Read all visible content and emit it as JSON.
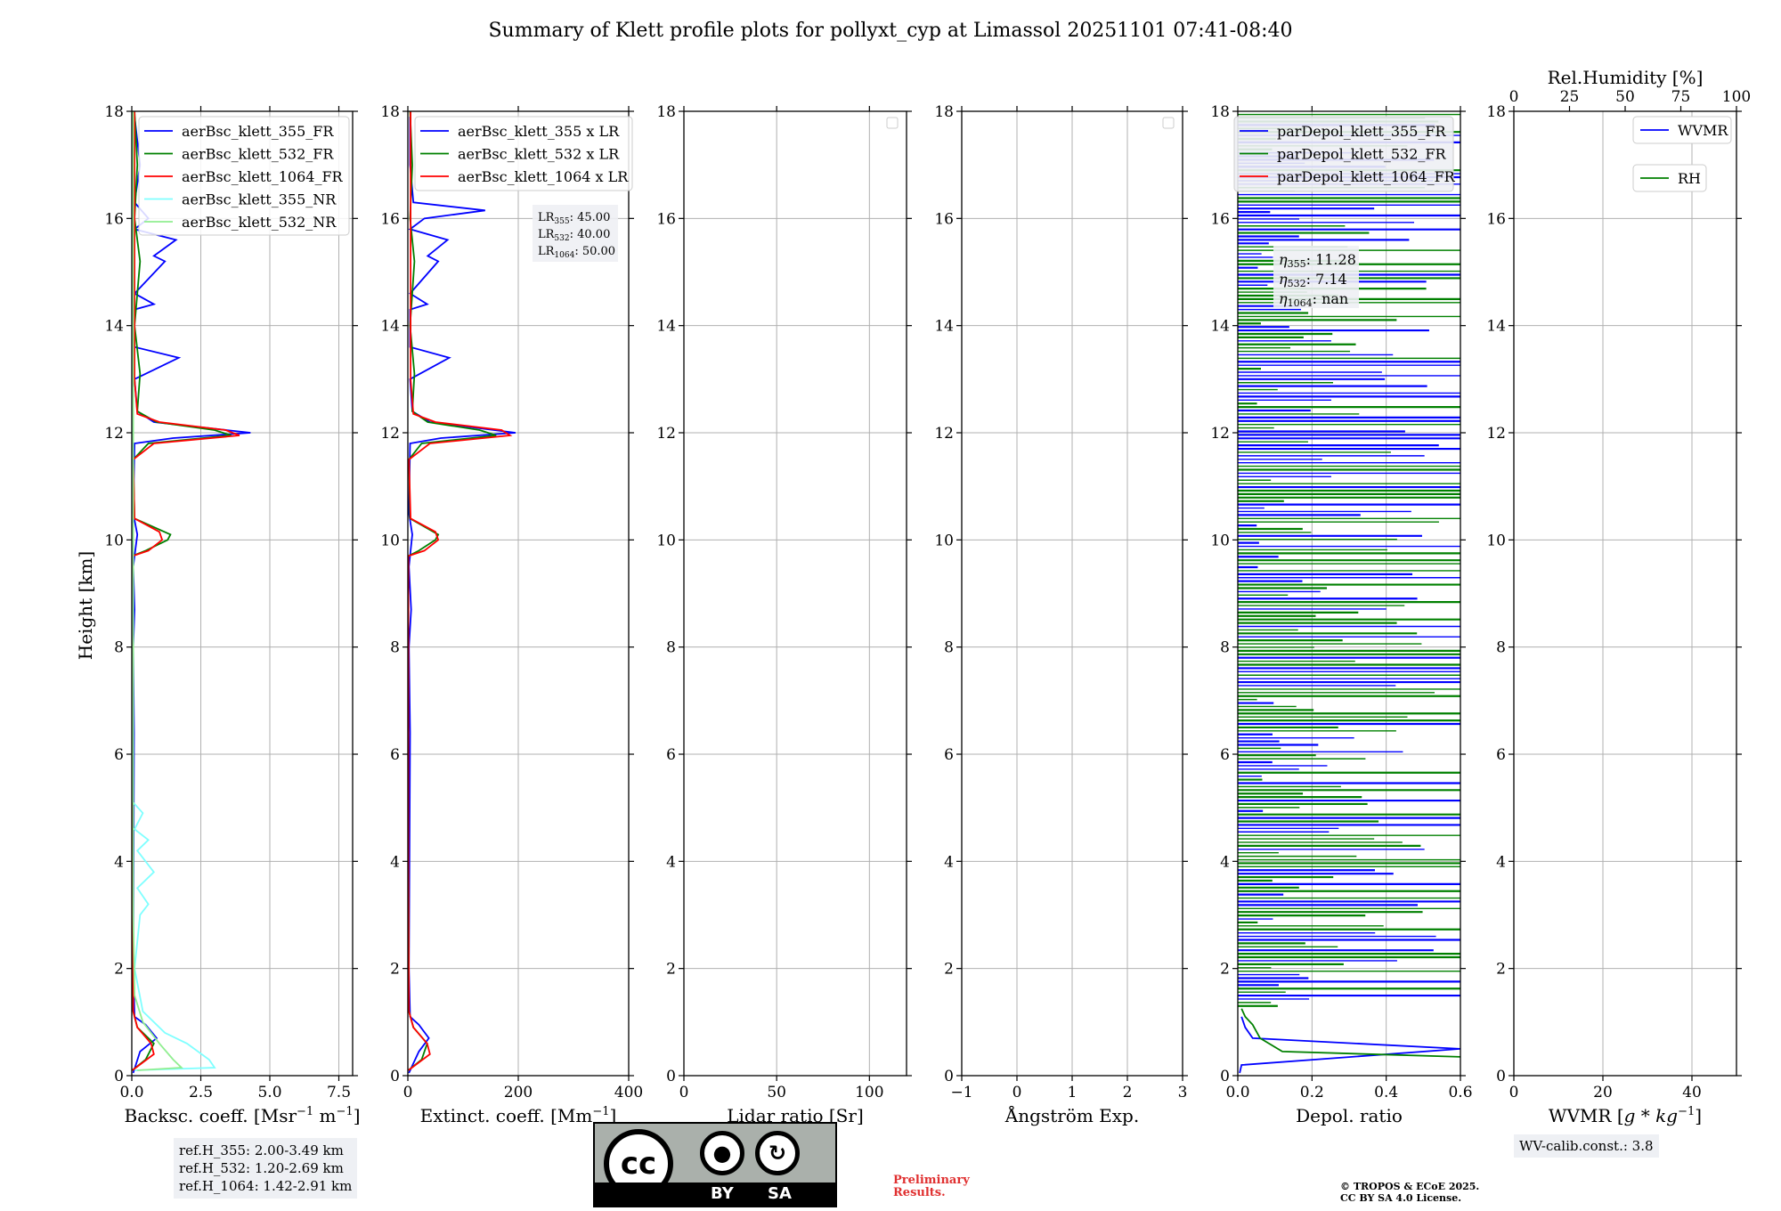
{
  "title": "Summary of Klett profile plots for pollyxt_cyp at Limassol 20251101 07:41-08:40",
  "ylabel": "Height [km]",
  "ref_heights": [
    "ref.H_355: 2.00-3.49 km",
    "ref.H_532: 1.20-2.69 km",
    "ref.H_1064: 1.42-2.91 km"
  ],
  "wv_calib": "WV-calib.const.: 3.8",
  "preliminary": [
    "Preliminary",
    "Results."
  ],
  "copyright": [
    "© TROPOS & ECoE 2025.",
    "CC BY SA 4.0 License."
  ],
  "license_badge": {
    "cc": "cc",
    "by": "BY",
    "sa": "SA"
  },
  "colors": {
    "blue": "#0000ff",
    "green": "#008000",
    "red": "#ff0000",
    "cyan": "#7fffff",
    "lightgreen": "#90ee90"
  },
  "chart_data": [
    {
      "type": "line",
      "xlabel": "Backsc. coeff. [Msr$^{-1}$ m$^{-1}$]",
      "xlabel_text": "Backsc. coeff. [Msr",
      "xlabel_sup1": "−1",
      "xlabel_mid": " m",
      "xlabel_sup2": "−1",
      "xlabel_end": "]",
      "xlim": [
        0,
        8
      ],
      "ylim": [
        0,
        18
      ],
      "xticks": [
        "0.0",
        "2.5",
        "5.0",
        "7.5"
      ],
      "xtick_values": [
        0,
        2.5,
        5,
        7.5
      ],
      "yticks": [
        "0",
        "2",
        "4",
        "6",
        "8",
        "10",
        "12",
        "14",
        "16",
        "18"
      ],
      "legend": [
        "aerBsc_klett_355_FR",
        "aerBsc_klett_532_FR",
        "aerBsc_klett_1064_FR",
        "aerBsc_klett_355_NR",
        "aerBsc_klett_532_NR"
      ],
      "series": [
        {
          "name": "aerBsc_klett_355_FR",
          "color": "blue",
          "points": [
            [
              0.05,
              0.05
            ],
            [
              0.3,
              0.45
            ],
            [
              0.9,
              0.7
            ],
            [
              0.5,
              0.95
            ],
            [
              0.1,
              1.1
            ],
            [
              0.05,
              2
            ],
            [
              0.08,
              6.4
            ],
            [
              0.05,
              8
            ],
            [
              0.1,
              8.7
            ],
            [
              0.05,
              9.5
            ],
            [
              0.2,
              10.1
            ],
            [
              0.05,
              10.5
            ],
            [
              0.1,
              11.8
            ],
            [
              1.5,
              11.9
            ],
            [
              4.3,
              12.0
            ],
            [
              0.8,
              12.2
            ],
            [
              0.2,
              12.4
            ],
            [
              0.1,
              13
            ],
            [
              1.7,
              13.4
            ],
            [
              0.1,
              13.6
            ],
            [
              0.1,
              14.3
            ],
            [
              0.8,
              14.4
            ],
            [
              0.1,
              14.6
            ],
            [
              1.2,
              15.2
            ],
            [
              0.8,
              15.3
            ],
            [
              1.6,
              15.6
            ],
            [
              0.1,
              15.8
            ],
            [
              0.6,
              16.0
            ],
            [
              0.1,
              16.3
            ],
            [
              0.3,
              17
            ],
            [
              0.1,
              17.9
            ]
          ]
        },
        {
          "name": "aerBsc_klett_532_FR",
          "color": "green",
          "points": [
            [
              0.02,
              0.1
            ],
            [
              0.5,
              0.3
            ],
            [
              0.8,
              0.6
            ],
            [
              0.2,
              0.9
            ],
            [
              0.05,
              1.2
            ],
            [
              0.02,
              4
            ],
            [
              0.02,
              9.7
            ],
            [
              0.5,
              9.8
            ],
            [
              1.3,
              10.0
            ],
            [
              1.4,
              10.1
            ],
            [
              0.1,
              10.4
            ],
            [
              0.05,
              11.5
            ],
            [
              0.6,
              11.8
            ],
            [
              3.6,
              11.95
            ],
            [
              3.0,
              12.05
            ],
            [
              0.9,
              12.2
            ],
            [
              0.2,
              12.4
            ],
            [
              0.3,
              13.1
            ],
            [
              0.1,
              14
            ],
            [
              0.3,
              15.2
            ],
            [
              0.1,
              16
            ],
            [
              0.2,
              17
            ],
            [
              0.1,
              18
            ]
          ]
        },
        {
          "name": "aerBsc_klett_1064_FR",
          "color": "red",
          "points": [
            [
              0.02,
              0.1
            ],
            [
              0.8,
              0.4
            ],
            [
              0.7,
              0.6
            ],
            [
              0.2,
              0.9
            ],
            [
              0.05,
              1.2
            ],
            [
              0.03,
              4
            ],
            [
              0.03,
              9.7
            ],
            [
              0.6,
              9.8
            ],
            [
              1.1,
              10.0
            ],
            [
              1.0,
              10.15
            ],
            [
              0.1,
              10.4
            ],
            [
              0.05,
              11.5
            ],
            [
              0.8,
              11.8
            ],
            [
              3.9,
              11.95
            ],
            [
              3.4,
              12.05
            ],
            [
              1.0,
              12.2
            ],
            [
              0.2,
              12.35
            ],
            [
              0.1,
              13
            ],
            [
              0.1,
              18
            ]
          ]
        },
        {
          "name": "aerBsc_klett_355_NR",
          "color": "cyan",
          "points": [
            [
              0.1,
              0.1
            ],
            [
              3.0,
              0.15
            ],
            [
              2.8,
              0.3
            ],
            [
              2.0,
              0.6
            ],
            [
              1.2,
              0.8
            ],
            [
              0.4,
              1.2
            ],
            [
              0.1,
              2.0
            ],
            [
              0.3,
              3.0
            ],
            [
              0.6,
              3.2
            ],
            [
              0.2,
              3.5
            ],
            [
              0.8,
              3.8
            ],
            [
              0.2,
              4.2
            ],
            [
              0.6,
              4.4
            ],
            [
              0.1,
              4.6
            ],
            [
              0.4,
              4.9
            ],
            [
              0.05,
              5.1
            ],
            [
              0.05,
              18
            ]
          ]
        },
        {
          "name": "aerBsc_klett_532_NR",
          "color": "lightgreen",
          "points": [
            [
              0.2,
              0.1
            ],
            [
              1.8,
              0.15
            ],
            [
              1.5,
              0.3
            ],
            [
              1.0,
              0.6
            ],
            [
              0.4,
              1.0
            ],
            [
              0.1,
              1.5
            ],
            [
              0.05,
              3
            ],
            [
              0.05,
              18
            ]
          ]
        }
      ]
    },
    {
      "type": "line",
      "xlabel_text": "Extinct. coeff. [Mm",
      "xlabel_sup1": "−1",
      "xlabel_end": "]",
      "xlim": [
        0,
        400
      ],
      "ylim": [
        0,
        18
      ],
      "xticks": [
        "0",
        "200",
        "400"
      ],
      "xtick_values": [
        0,
        200,
        400
      ],
      "yticks": [
        "0",
        "2",
        "4",
        "6",
        "8",
        "10",
        "12",
        "14",
        "16",
        "18"
      ],
      "legend": [
        "aerBsc_klett_355 x LR",
        "aerBsc_klett_532 x LR",
        "aerBsc_klett_1064 x LR"
      ],
      "lr_box": [
        "LR",
        "355",
        ": 45.00",
        "LR",
        "532",
        ": 40.00",
        "LR",
        "1064",
        ": 50.00"
      ],
      "series": [
        {
          "name": "aerBsc_klett_355 x LR",
          "color": "blue",
          "points": [
            [
              2,
              0.05
            ],
            [
              20,
              0.45
            ],
            [
              38,
              0.7
            ],
            [
              20,
              0.95
            ],
            [
              4,
              1.1
            ],
            [
              2,
              2
            ],
            [
              4,
              6.4
            ],
            [
              2,
              8
            ],
            [
              6,
              8.7
            ],
            [
              2,
              9.5
            ],
            [
              8,
              10.1
            ],
            [
              2,
              10.5
            ],
            [
              4,
              11.8
            ],
            [
              60,
              11.9
            ],
            [
              195,
              12.0
            ],
            [
              40,
              12.2
            ],
            [
              8,
              12.4
            ],
            [
              4,
              13
            ],
            [
              75,
              13.4
            ],
            [
              4,
              13.6
            ],
            [
              4,
              14.3
            ],
            [
              35,
              14.4
            ],
            [
              4,
              14.6
            ],
            [
              55,
              15.2
            ],
            [
              36,
              15.3
            ],
            [
              72,
              15.6
            ],
            [
              4,
              15.8
            ],
            [
              30,
              16.0
            ],
            [
              140,
              16.15
            ],
            [
              10,
              16.3
            ],
            [
              4,
              17
            ],
            [
              4,
              17.9
            ]
          ]
        },
        {
          "name": "aerBsc_klett_532 x LR",
          "color": "green",
          "points": [
            [
              1,
              0.1
            ],
            [
              25,
              0.3
            ],
            [
              35,
              0.6
            ],
            [
              10,
              0.9
            ],
            [
              2,
              1.2
            ],
            [
              1,
              4
            ],
            [
              1,
              9.7
            ],
            [
              20,
              9.8
            ],
            [
              50,
              10.0
            ],
            [
              55,
              10.1
            ],
            [
              4,
              10.4
            ],
            [
              2,
              11.5
            ],
            [
              25,
              11.8
            ],
            [
              160,
              11.95
            ],
            [
              130,
              12.05
            ],
            [
              36,
              12.2
            ],
            [
              8,
              12.4
            ],
            [
              12,
              13.1
            ],
            [
              4,
              14
            ],
            [
              12,
              15.2
            ],
            [
              4,
              16
            ],
            [
              8,
              17
            ],
            [
              4,
              18
            ]
          ]
        },
        {
          "name": "aerBsc_klett_1064 x LR",
          "color": "red",
          "points": [
            [
              1,
              0.1
            ],
            [
              40,
              0.4
            ],
            [
              35,
              0.6
            ],
            [
              10,
              0.9
            ],
            [
              2,
              1.2
            ],
            [
              1,
              4
            ],
            [
              1,
              9.7
            ],
            [
              30,
              9.8
            ],
            [
              55,
              10.0
            ],
            [
              50,
              10.15
            ],
            [
              5,
              10.4
            ],
            [
              2,
              11.5
            ],
            [
              40,
              11.8
            ],
            [
              185,
              11.95
            ],
            [
              170,
              12.05
            ],
            [
              50,
              12.2
            ],
            [
              10,
              12.35
            ],
            [
              5,
              13
            ],
            [
              5,
              18
            ]
          ]
        }
      ]
    },
    {
      "type": "line",
      "xlabel_text": "Lidar ratio [Sr]",
      "xlim": [
        0,
        120
      ],
      "ylim": [
        0,
        18
      ],
      "xticks": [
        "0",
        "50",
        "100"
      ],
      "xtick_values": [
        0,
        50,
        100
      ],
      "yticks": [
        "0",
        "2",
        "4",
        "6",
        "8",
        "10",
        "12",
        "14",
        "16",
        "18"
      ],
      "series": []
    },
    {
      "type": "line",
      "xlabel_text": "Ångström Exp.",
      "xlim": [
        -1,
        3
      ],
      "ylim": [
        0,
        18
      ],
      "xticks": [
        "−1",
        "0",
        "1",
        "2",
        "3"
      ],
      "xtick_values": [
        -1,
        0,
        1,
        2,
        3
      ],
      "yticks": [
        "0",
        "2",
        "4",
        "6",
        "8",
        "10",
        "12",
        "14",
        "16",
        "18"
      ],
      "series": []
    },
    {
      "type": "line",
      "xlabel_text": "Depol. ratio",
      "xlim": [
        0,
        0.6
      ],
      "ylim": [
        0,
        18
      ],
      "xticks": [
        "0.0",
        "0.2",
        "0.4",
        "0.6"
      ],
      "xtick_values": [
        0,
        0.2,
        0.4,
        0.6
      ],
      "yticks": [
        "0",
        "2",
        "4",
        "6",
        "8",
        "10",
        "12",
        "14",
        "16",
        "18"
      ],
      "legend": [
        "parDepol_klett_355_FR",
        "parDepol_klett_532_FR",
        "parDepol_klett_1064_FR"
      ],
      "eta": [
        "η",
        "355",
        ": 11.28",
        "η",
        "532",
        ": 7.14",
        "η",
        "1064",
        ": nan"
      ],
      "series": [
        {
          "name": "parDepol_klett_355_FR",
          "color": "blue",
          "points": [
            [
              0.005,
              0.05
            ],
            [
              0.01,
              0.2
            ],
            [
              0.6,
              0.5
            ],
            [
              0.04,
              0.7
            ],
            [
              0.02,
              0.9
            ],
            [
              0.01,
              1.1
            ]
          ]
        },
        {
          "name": "parDepol_klett_532_FR",
          "color": "green",
          "points": [
            [
              0.6,
              0.35
            ],
            [
              0.12,
              0.45
            ],
            [
              0.06,
              0.7
            ],
            [
              0.04,
              0.95
            ],
            [
              0.02,
              1.1
            ],
            [
              0.01,
              1.25
            ]
          ]
        }
      ]
    },
    {
      "type": "line",
      "xlabel_text": "WVMR [",
      "xlabel_math": "g * kg",
      "xlabel_sup1": "−1",
      "xlabel_end": "]",
      "xlim": [
        0,
        50
      ],
      "ylim": [
        0,
        18
      ],
      "xticks": [
        "0",
        "20",
        "40"
      ],
      "xtick_values": [
        0,
        20,
        40
      ],
      "yticks": [
        "0",
        "2",
        "4",
        "6",
        "8",
        "10",
        "12",
        "14",
        "16",
        "18"
      ],
      "top_axis_label": "Rel.Humidity [%]",
      "top_xlim": [
        0,
        100
      ],
      "top_xticks": [
        "0",
        "25",
        "50",
        "75",
        "100"
      ],
      "top_xtick_values": [
        0,
        25,
        50,
        75,
        100
      ],
      "legend": [
        "WVMR",
        "RH"
      ],
      "series": []
    }
  ]
}
